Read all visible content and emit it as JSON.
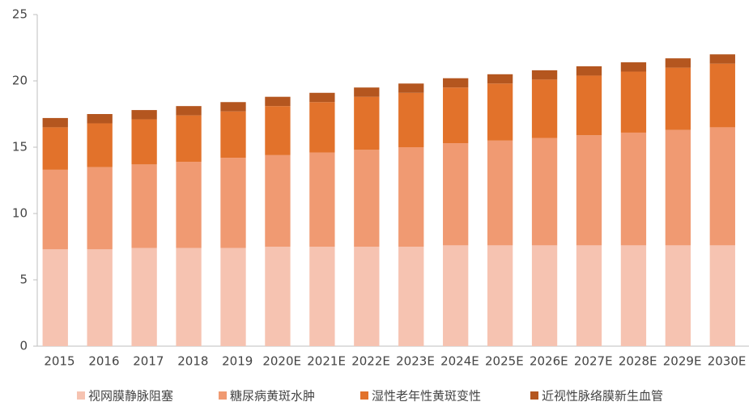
{
  "chart_data": {
    "type": "stacked_bar",
    "categories": [
      "2015",
      "2016",
      "2017",
      "2018",
      "2019",
      "2020E",
      "2021E",
      "2022E",
      "2023E",
      "2024E",
      "2025E",
      "2026E",
      "2027E",
      "2028E",
      "2029E",
      "2030E"
    ],
    "series": [
      {
        "name": "视网膜静脉阻塞",
        "color": "#f6c3b1",
        "values": [
          7.3,
          7.3,
          7.4,
          7.4,
          7.4,
          7.5,
          7.5,
          7.5,
          7.5,
          7.6,
          7.6,
          7.6,
          7.6,
          7.6,
          7.6,
          7.6
        ]
      },
      {
        "name": "糖尿病黄斑水肿",
        "color": "#f09a72",
        "values": [
          6.0,
          6.2,
          6.3,
          6.5,
          6.8,
          6.9,
          7.1,
          7.3,
          7.5,
          7.7,
          7.9,
          8.1,
          8.3,
          8.5,
          8.7,
          8.9
        ]
      },
      {
        "name": "湿性老年性黄斑变性",
        "color": "#e2722b",
        "values": [
          3.2,
          3.3,
          3.4,
          3.5,
          3.5,
          3.7,
          3.8,
          4.0,
          4.1,
          4.2,
          4.3,
          4.4,
          4.5,
          4.6,
          4.7,
          4.8
        ]
      },
      {
        "name": "近视性脉络膜新生血管",
        "color": "#b4561f",
        "values": [
          0.7,
          0.7,
          0.7,
          0.7,
          0.7,
          0.7,
          0.7,
          0.7,
          0.7,
          0.7,
          0.7,
          0.7,
          0.7,
          0.7,
          0.7,
          0.7
        ]
      }
    ],
    "ylim": [
      0,
      25
    ],
    "yticks": [
      0,
      5,
      10,
      15,
      20,
      25
    ],
    "grid": false,
    "legend": "bottom"
  }
}
